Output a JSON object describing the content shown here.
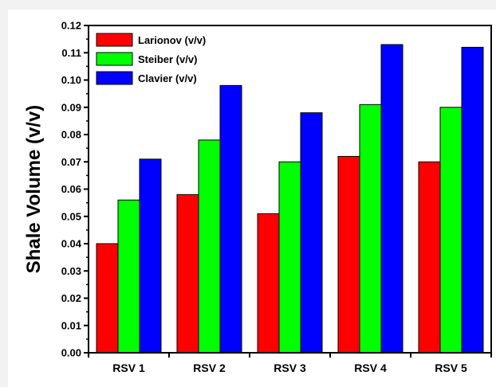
{
  "chart_data": {
    "type": "bar",
    "title": "",
    "xlabel": "",
    "ylabel": "Shale Volume (v/v)",
    "categories": [
      "RSV 1",
      "RSV 2",
      "RSV 3",
      "RSV 4",
      "RSV 5"
    ],
    "series": [
      {
        "name": "Larionov (v/v)",
        "color": "#ff0000",
        "values": [
          0.04,
          0.058,
          0.051,
          0.072,
          0.07
        ]
      },
      {
        "name": "Steiber (v/v)",
        "color": "#00ff00",
        "values": [
          0.056,
          0.078,
          0.07,
          0.091,
          0.09
        ]
      },
      {
        "name": "Clavier (v/v)",
        "color": "#0000ff",
        "values": [
          0.071,
          0.098,
          0.088,
          0.113,
          0.112
        ]
      }
    ],
    "ylim": [
      0.0,
      0.12
    ],
    "yticks": [
      "0.00",
      "0.01",
      "0.02",
      "0.03",
      "0.04",
      "0.05",
      "0.06",
      "0.07",
      "0.08",
      "0.09",
      "0.10",
      "0.11",
      "0.12"
    ],
    "grid": false,
    "legend_position": "top-left"
  }
}
